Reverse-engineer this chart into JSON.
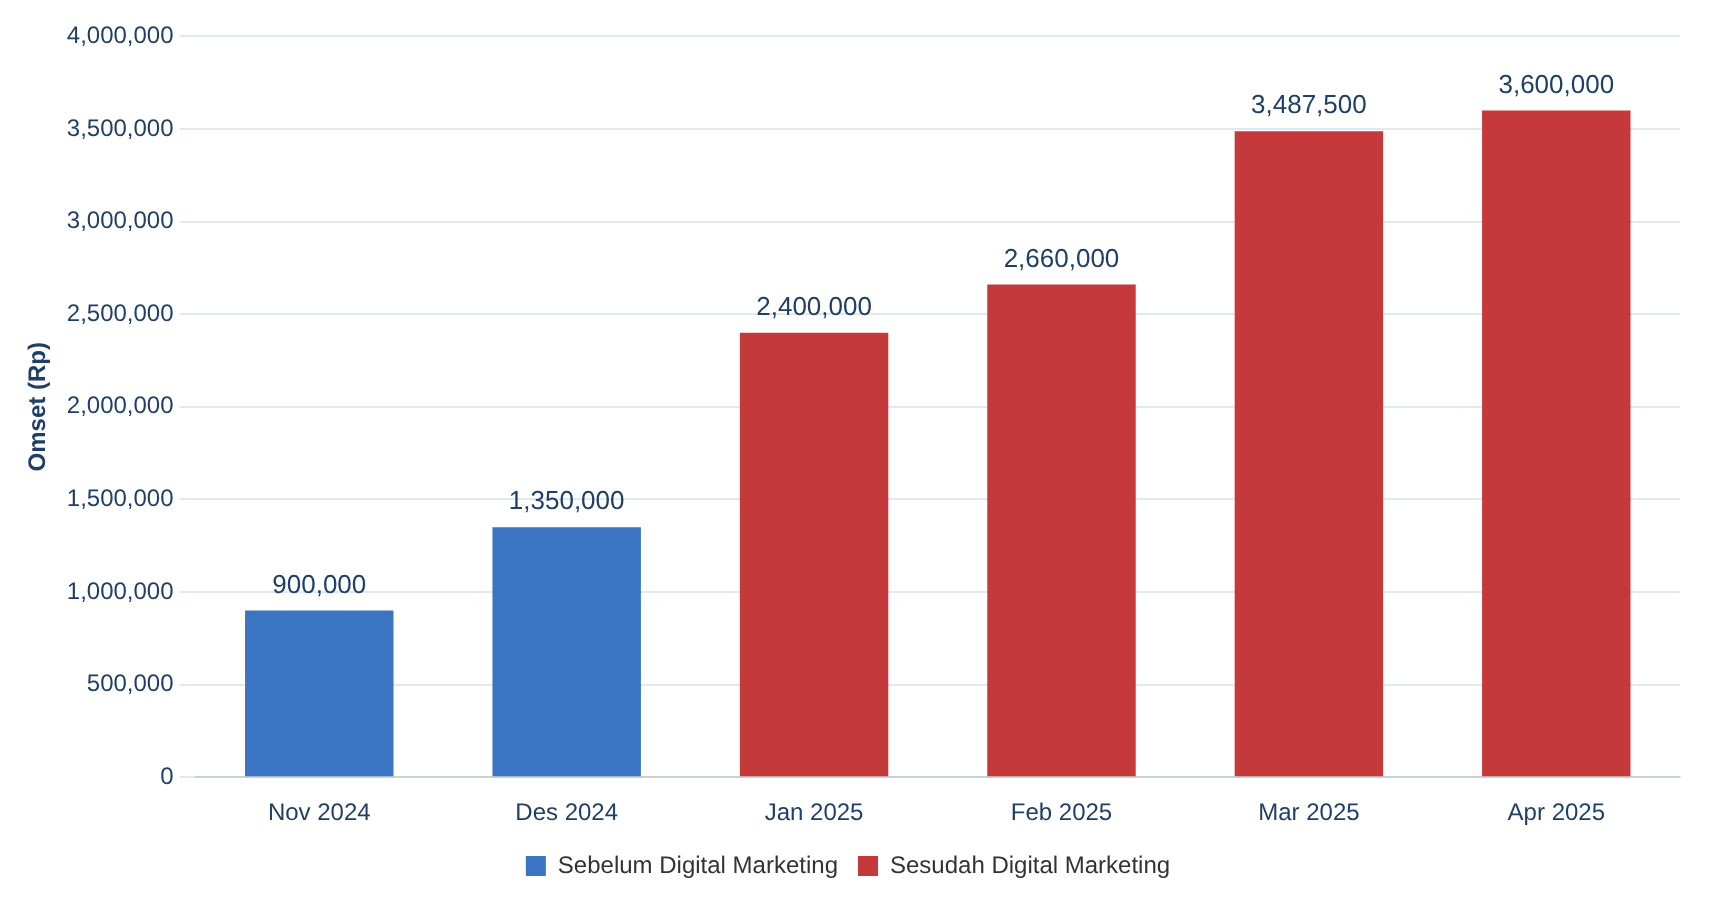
{
  "chart_data": {
    "type": "bar",
    "ylabel": "Omset (Rp)",
    "categories": [
      "Nov 2024",
      "Des 2024",
      "Jan 2025",
      "Feb 2025",
      "Mar 2025",
      "Apr 2025"
    ],
    "series": [
      {
        "name": "Sebelum Digital Marketing",
        "color": "#3b74c2",
        "values": [
          900000,
          1350000,
          null,
          null,
          null,
          null
        ],
        "value_labels": [
          "900,000",
          "1,350,000",
          null,
          null,
          null,
          null
        ]
      },
      {
        "name": "Sesudah Digital Marketing",
        "color": "#c5393a",
        "values": [
          null,
          null,
          2400000,
          2660000,
          3487500,
          3600000
        ],
        "value_labels": [
          null,
          null,
          "2,400,000",
          "2,660,000",
          "3,487,500",
          "3,600,000"
        ]
      }
    ],
    "ylim": [
      0,
      4000000
    ],
    "yticks": [
      {
        "value": 0,
        "label": "0"
      },
      {
        "value": 500000,
        "label": "500,000"
      },
      {
        "value": 1000000,
        "label": "1,000,000"
      },
      {
        "value": 1500000,
        "label": "1,500,000"
      },
      {
        "value": 2000000,
        "label": "2,000,000"
      },
      {
        "value": 2500000,
        "label": "2,500,000"
      },
      {
        "value": 3000000,
        "label": "3,000,000"
      },
      {
        "value": 3500000,
        "label": "3,500,000"
      },
      {
        "value": 4000000,
        "label": "4,000,000"
      }
    ],
    "grid": "y",
    "legend": "bottom"
  }
}
